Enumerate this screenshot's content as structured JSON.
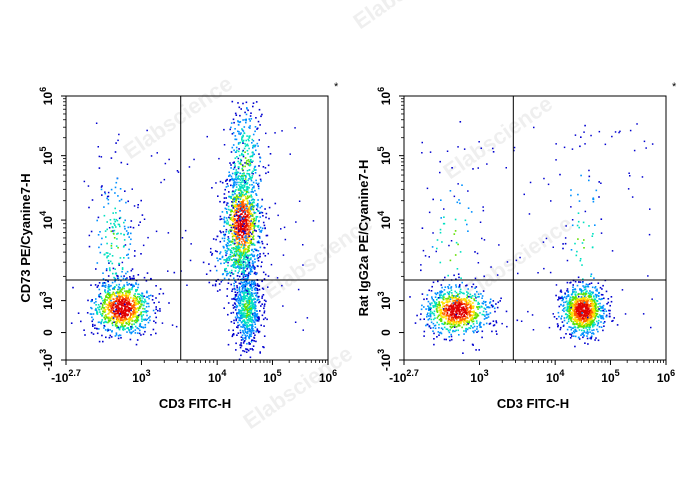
{
  "watermark": "Elabscience",
  "chart_data": [
    {
      "type": "scatter",
      "subtype": "flow-cytometry-density-dot-plot",
      "xlabel": "CD3 FITC-H",
      "ylabel": "CD73 PE/Cyanine7-H",
      "x_scale": "biexponential",
      "y_scale": "biexponential",
      "x_ticks": [
        {
          "base": "-10",
          "exp": "2.7"
        },
        {
          "base": "10",
          "exp": "3"
        },
        {
          "base": "10",
          "exp": "4"
        },
        {
          "base": "10",
          "exp": "5"
        },
        {
          "base": "10",
          "exp": "6"
        }
      ],
      "y_ticks": [
        {
          "base": "-10",
          "exp": "3"
        },
        {
          "base": "0",
          "exp": ""
        },
        {
          "base": "10",
          "exp": "3"
        },
        {
          "base": "10",
          "exp": "4"
        },
        {
          "base": "10",
          "exp": "5"
        },
        {
          "base": "10",
          "exp": "6"
        }
      ],
      "gate_x": 3300,
      "gate_y": 1800,
      "populations": [
        {
          "name": "CD3- CD73- cluster",
          "center_x": 500,
          "center_y": 1000,
          "relative_density": "high"
        },
        {
          "name": "CD3+ CD73+ cluster",
          "center_x": 25000,
          "center_y": 6000,
          "relative_density": "highest"
        },
        {
          "name": "CD3+ CD73- cluster",
          "center_x": 35000,
          "center_y": 1000,
          "relative_density": "high"
        }
      ],
      "colormap": [
        "#0000d0",
        "#0090ff",
        "#00e0c0",
        "#60e000",
        "#ffe000",
        "#ff6000",
        "#e00000"
      ],
      "annotation": "*"
    },
    {
      "type": "scatter",
      "subtype": "flow-cytometry-density-dot-plot",
      "xlabel": "CD3 FITC-H",
      "ylabel": "Rat IgG2a PE/Cyanine7-H",
      "x_scale": "biexponential",
      "y_scale": "biexponential",
      "x_ticks": [
        {
          "base": "-10",
          "exp": "2.7"
        },
        {
          "base": "10",
          "exp": "3"
        },
        {
          "base": "10",
          "exp": "4"
        },
        {
          "base": "10",
          "exp": "5"
        },
        {
          "base": "10",
          "exp": "6"
        }
      ],
      "y_ticks": [
        {
          "base": "-10",
          "exp": "3"
        },
        {
          "base": "0",
          "exp": ""
        },
        {
          "base": "10",
          "exp": "3"
        },
        {
          "base": "10",
          "exp": "4"
        },
        {
          "base": "10",
          "exp": "5"
        },
        {
          "base": "10",
          "exp": "6"
        }
      ],
      "gate_x": 2800,
      "gate_y": 1800,
      "populations": [
        {
          "name": "CD3- cluster",
          "center_x": 500,
          "center_y": 800,
          "relative_density": "high"
        },
        {
          "name": "CD3+ cluster",
          "center_x": 30000,
          "center_y": 800,
          "relative_density": "highest"
        }
      ],
      "colormap": [
        "#0000d0",
        "#0090ff",
        "#00e0c0",
        "#60e000",
        "#ffe000",
        "#ff6000",
        "#e00000"
      ],
      "annotation": "*"
    }
  ]
}
